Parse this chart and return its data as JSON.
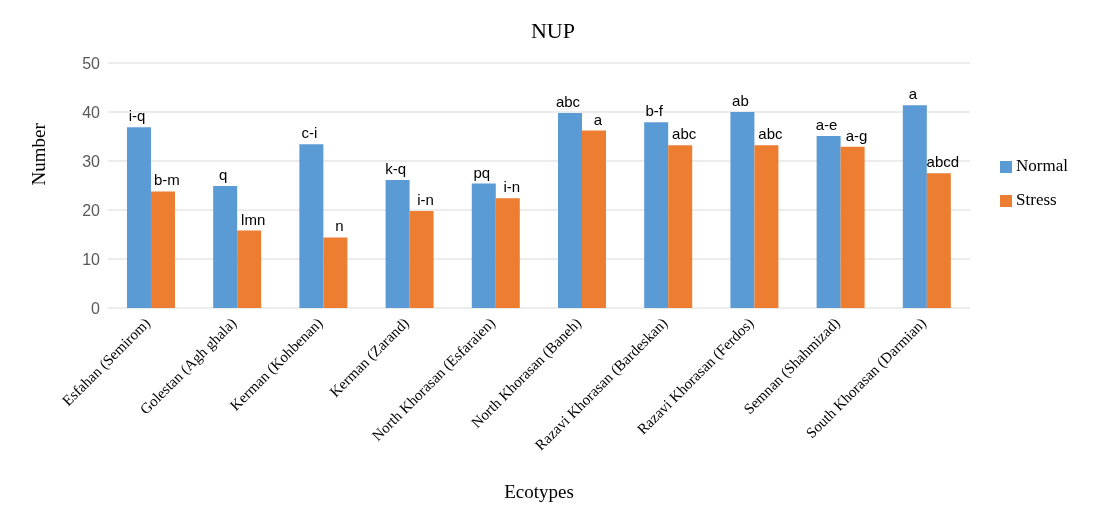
{
  "chart_data": {
    "type": "bar",
    "title": "NUP",
    "xlabel": "Ecotypes",
    "ylabel": "Number",
    "categories": [
      "Esfahan (Semirom)",
      "Golestan (Agh ghala)",
      "Kerman (Kohbenan)",
      "Kerman (Zarand)",
      "North Khorasan (Esfaraien)",
      "North Khorasan (Baneh)",
      "Razavi Khorasan (Bardeskan)",
      "Razavi Khorasan (Ferdos)",
      "Semnan (Shahmizad)",
      "South Khorasan (Darmian)"
    ],
    "series": [
      {
        "name": "Normal",
        "color": "#5b9bd5",
        "values": [
          36.9,
          24.9,
          33.4,
          26.1,
          25.4,
          39.8,
          37.9,
          40,
          35.1,
          41.4
        ],
        "value_labels": [
          "i-q",
          "q",
          "c-i",
          "k-q",
          "pq",
          "abc",
          "b-f",
          "ab",
          "a-e",
          "a"
        ]
      },
      {
        "name": "Stress",
        "color": "#ed7d31",
        "values": [
          23.8,
          15.8,
          14.4,
          19.8,
          22.4,
          36.2,
          33.2,
          33.2,
          32.9,
          27.5
        ],
        "value_labels": [
          "b-m",
          "lmn",
          "n",
          "i-n",
          "i-n",
          "a",
          "abc",
          "abc",
          "a-g",
          "abcd"
        ]
      }
    ],
    "ylim": [
      0,
      50
    ],
    "yticks": [
      0,
      10,
      20,
      30,
      40,
      50
    ],
    "grid": "y",
    "legend": "right"
  }
}
